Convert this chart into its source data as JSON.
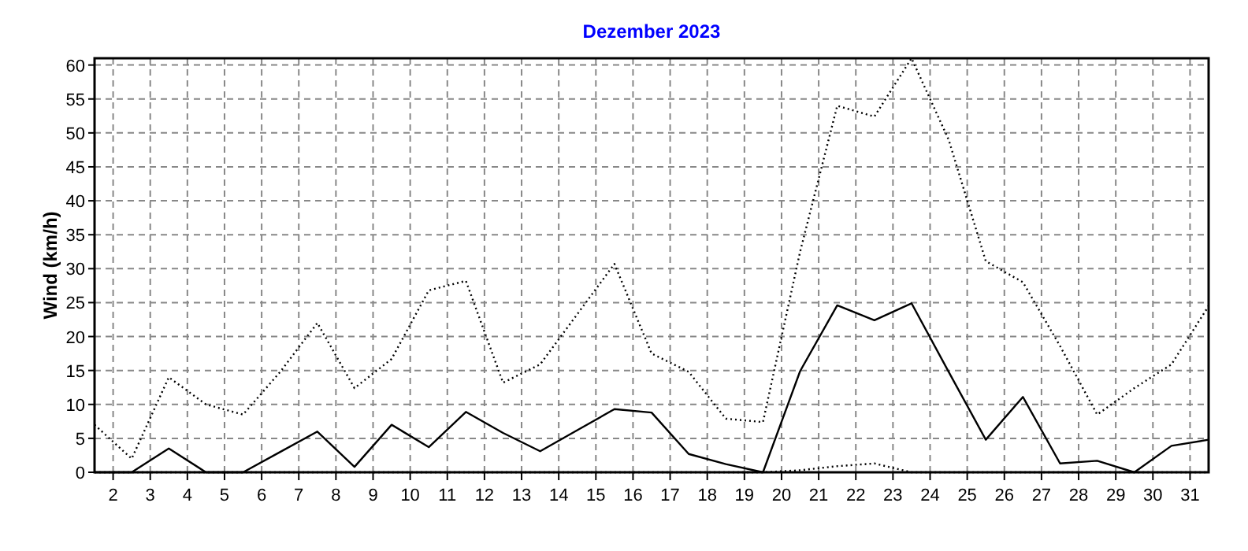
{
  "chart_data": {
    "type": "line",
    "title": "Dezember 2023",
    "ylabel": "Wind  (km/h)",
    "x": [
      1.5,
      2.5,
      3.5,
      4.5,
      5.5,
      6.5,
      7.5,
      8.5,
      9.5,
      10.5,
      11.5,
      12.5,
      13.5,
      14.5,
      15.5,
      16.5,
      17.5,
      18.5,
      19.5,
      20.5,
      21.5,
      22.5,
      23.5,
      24.5,
      25.5,
      26.5,
      27.5,
      28.5,
      29.5,
      30.5,
      31.5
    ],
    "xlim": [
      1.5,
      31.5
    ],
    "xticks": [
      2,
      3,
      4,
      5,
      6,
      7,
      8,
      9,
      10,
      11,
      12,
      13,
      14,
      15,
      16,
      17,
      18,
      19,
      20,
      21,
      22,
      23,
      24,
      25,
      26,
      27,
      28,
      29,
      30,
      31
    ],
    "ylim": [
      0,
      61
    ],
    "yticks": [
      0,
      5,
      10,
      15,
      20,
      25,
      30,
      35,
      40,
      45,
      50,
      55,
      60
    ],
    "grid": true,
    "marker": "none",
    "series": [
      {
        "color": "#000000",
        "line_style": "dotted",
        "values": [
          7,
          2,
          14,
          10,
          8.5,
          14.8,
          22,
          12.4,
          16.7,
          26.8,
          28.2,
          13.2,
          15.9,
          23.3,
          30.7,
          17.5,
          14.8,
          7.9,
          7.4,
          32.5,
          54,
          52.4,
          61,
          49,
          31.1,
          28,
          18.6,
          8.5,
          12.4,
          15.9,
          24.5
        ]
      },
      {
        "color": "#000000",
        "line_style": "solid",
        "values": [
          0,
          0,
          3.5,
          0,
          0,
          3,
          6,
          0.8,
          7,
          3.7,
          8.9,
          5.8,
          3.1,
          6.2,
          9.3,
          8.8,
          2.7,
          1.2,
          0,
          14.9,
          24.6,
          22.4,
          24.9,
          14.8,
          4.8,
          11.1,
          1.3,
          1.7,
          0,
          3.9,
          4.8
        ]
      },
      {
        "color": "#000000",
        "line_style": "dotted",
        "values": [
          0,
          0,
          0,
          0,
          0,
          0,
          0,
          0,
          0,
          0,
          0,
          0,
          0,
          0,
          0,
          0,
          0,
          0,
          0,
          0.3,
          0.9,
          1.3,
          0,
          0,
          0,
          0,
          0,
          0,
          0,
          0,
          0
        ]
      }
    ]
  }
}
